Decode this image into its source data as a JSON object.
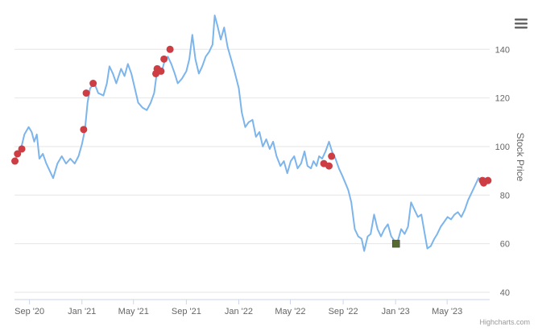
{
  "chart_data": {
    "type": "line",
    "title": "",
    "xlabel": "",
    "ylabel": "Stock Price",
    "y_axis_side": "right",
    "ylim": [
      37,
      157
    ],
    "xlim": [
      "2020-07-28",
      "2023-08-08"
    ],
    "y_ticks": [
      40,
      60,
      80,
      100,
      120,
      140
    ],
    "x_ticks": [
      {
        "date": "2020-09-01",
        "label": "Sep '20"
      },
      {
        "date": "2021-01-01",
        "label": "Jan '21"
      },
      {
        "date": "2021-05-01",
        "label": "May '21"
      },
      {
        "date": "2021-09-01",
        "label": "Sep '21"
      },
      {
        "date": "2022-01-01",
        "label": "Jan '22"
      },
      {
        "date": "2022-05-01",
        "label": "May '22"
      },
      {
        "date": "2022-09-01",
        "label": "Sep '22"
      },
      {
        "date": "2023-01-01",
        "label": "Jan '23"
      },
      {
        "date": "2023-05-01",
        "label": "May '23"
      }
    ],
    "grid": true,
    "legend": "none",
    "series": [
      {
        "type": "line",
        "color": "#7cb5ec",
        "points": [
          [
            "2020-07-28",
            94
          ],
          [
            "2020-08-05",
            97
          ],
          [
            "2020-08-12",
            99
          ],
          [
            "2020-08-20",
            105
          ],
          [
            "2020-08-30",
            108
          ],
          [
            "2020-09-06",
            106
          ],
          [
            "2020-09-12",
            102
          ],
          [
            "2020-09-18",
            105
          ],
          [
            "2020-09-24",
            95
          ],
          [
            "2020-10-02",
            97
          ],
          [
            "2020-10-10",
            93
          ],
          [
            "2020-10-18",
            90
          ],
          [
            "2020-10-26",
            87
          ],
          [
            "2020-11-05",
            93
          ],
          [
            "2020-11-15",
            96
          ],
          [
            "2020-11-25",
            93
          ],
          [
            "2020-12-05",
            95
          ],
          [
            "2020-12-15",
            93
          ],
          [
            "2020-12-24",
            96
          ],
          [
            "2021-01-01",
            101
          ],
          [
            "2021-01-08",
            107
          ],
          [
            "2021-01-14",
            118
          ],
          [
            "2021-01-20",
            124
          ],
          [
            "2021-01-30",
            126
          ],
          [
            "2021-02-08",
            122
          ],
          [
            "2021-02-20",
            121
          ],
          [
            "2021-02-28",
            126
          ],
          [
            "2021-03-06",
            133
          ],
          [
            "2021-03-14",
            130
          ],
          [
            "2021-03-22",
            126
          ],
          [
            "2021-04-02",
            132
          ],
          [
            "2021-04-10",
            129
          ],
          [
            "2021-04-18",
            134
          ],
          [
            "2021-04-26",
            130
          ],
          [
            "2021-05-04",
            124
          ],
          [
            "2021-05-12",
            118
          ],
          [
            "2021-05-22",
            116
          ],
          [
            "2021-06-01",
            115
          ],
          [
            "2021-06-10",
            118
          ],
          [
            "2021-06-18",
            122
          ],
          [
            "2021-06-24",
            130
          ],
          [
            "2021-06-30",
            133
          ],
          [
            "2021-07-06",
            131
          ],
          [
            "2021-07-12",
            135
          ],
          [
            "2021-07-20",
            137
          ],
          [
            "2021-07-28",
            134
          ],
          [
            "2021-08-05",
            130
          ],
          [
            "2021-08-12",
            126
          ],
          [
            "2021-08-22",
            128
          ],
          [
            "2021-09-01",
            131
          ],
          [
            "2021-09-08",
            136
          ],
          [
            "2021-09-15",
            146
          ],
          [
            "2021-09-22",
            136
          ],
          [
            "2021-09-30",
            130
          ],
          [
            "2021-10-08",
            133
          ],
          [
            "2021-10-16",
            137
          ],
          [
            "2021-10-24",
            139
          ],
          [
            "2021-11-01",
            142
          ],
          [
            "2021-11-06",
            154
          ],
          [
            "2021-11-12",
            150
          ],
          [
            "2021-11-20",
            144
          ],
          [
            "2021-11-28",
            149
          ],
          [
            "2021-12-06",
            141
          ],
          [
            "2021-12-14",
            136
          ],
          [
            "2021-12-22",
            131
          ],
          [
            "2022-01-01",
            124
          ],
          [
            "2022-01-08",
            114
          ],
          [
            "2022-01-16",
            108
          ],
          [
            "2022-01-24",
            110
          ],
          [
            "2022-02-02",
            111
          ],
          [
            "2022-02-10",
            104
          ],
          [
            "2022-02-18",
            106
          ],
          [
            "2022-02-26",
            100
          ],
          [
            "2022-03-06",
            103
          ],
          [
            "2022-03-14",
            99
          ],
          [
            "2022-03-22",
            102
          ],
          [
            "2022-03-30",
            96
          ],
          [
            "2022-04-08",
            92
          ],
          [
            "2022-04-16",
            94
          ],
          [
            "2022-04-24",
            89
          ],
          [
            "2022-05-02",
            94
          ],
          [
            "2022-05-10",
            96
          ],
          [
            "2022-05-18",
            91
          ],
          [
            "2022-05-26",
            93
          ],
          [
            "2022-06-03",
            98
          ],
          [
            "2022-06-10",
            92
          ],
          [
            "2022-06-18",
            91
          ],
          [
            "2022-06-24",
            94
          ],
          [
            "2022-07-01",
            92
          ],
          [
            "2022-07-07",
            96
          ],
          [
            "2022-07-14",
            95
          ],
          [
            "2022-07-22",
            98
          ],
          [
            "2022-07-30",
            102
          ],
          [
            "2022-08-06",
            98
          ],
          [
            "2022-08-14",
            95
          ],
          [
            "2022-08-22",
            91
          ],
          [
            "2022-08-30",
            88
          ],
          [
            "2022-09-06",
            85
          ],
          [
            "2022-09-13",
            82
          ],
          [
            "2022-09-20",
            77
          ],
          [
            "2022-09-28",
            66
          ],
          [
            "2022-10-06",
            63
          ],
          [
            "2022-10-14",
            62
          ],
          [
            "2022-10-20",
            57
          ],
          [
            "2022-10-28",
            63
          ],
          [
            "2022-11-04",
            64
          ],
          [
            "2022-11-12",
            72
          ],
          [
            "2022-11-20",
            66
          ],
          [
            "2022-11-28",
            63
          ],
          [
            "2022-12-06",
            66
          ],
          [
            "2022-12-14",
            68
          ],
          [
            "2022-12-22",
            63
          ],
          [
            "2022-12-30",
            61
          ],
          [
            "2023-01-06",
            61
          ],
          [
            "2023-01-14",
            66
          ],
          [
            "2023-01-22",
            64
          ],
          [
            "2023-01-30",
            67
          ],
          [
            "2023-02-06",
            77
          ],
          [
            "2023-02-14",
            74
          ],
          [
            "2023-02-22",
            71
          ],
          [
            "2023-03-02",
            72
          ],
          [
            "2023-03-10",
            64
          ],
          [
            "2023-03-16",
            58
          ],
          [
            "2023-03-24",
            59
          ],
          [
            "2023-04-01",
            62
          ],
          [
            "2023-04-08",
            64
          ],
          [
            "2023-04-16",
            67
          ],
          [
            "2023-04-24",
            69
          ],
          [
            "2023-05-02",
            71
          ],
          [
            "2023-05-10",
            70
          ],
          [
            "2023-05-18",
            72
          ],
          [
            "2023-05-26",
            73
          ],
          [
            "2023-06-03",
            71
          ],
          [
            "2023-06-11",
            74
          ],
          [
            "2023-06-19",
            78
          ],
          [
            "2023-06-27",
            81
          ],
          [
            "2023-07-05",
            84
          ],
          [
            "2023-07-13",
            87
          ],
          [
            "2023-07-20",
            86
          ],
          [
            "2023-07-27",
            87
          ],
          [
            "2023-08-04",
            86
          ]
        ]
      },
      {
        "type": "scatter",
        "color": "#cc3e44",
        "marker": "circle",
        "points": [
          [
            "2020-07-29",
            94
          ],
          [
            "2020-08-04",
            97
          ],
          [
            "2020-08-14",
            99
          ],
          [
            "2021-01-05",
            107
          ],
          [
            "2021-01-11",
            122
          ],
          [
            "2021-01-27",
            126
          ],
          [
            "2021-06-22",
            130
          ],
          [
            "2021-06-25",
            132
          ],
          [
            "2021-07-04",
            131
          ],
          [
            "2021-07-11",
            136
          ],
          [
            "2021-07-25",
            140
          ],
          [
            "2022-07-18",
            93
          ],
          [
            "2022-07-30",
            92
          ],
          [
            "2022-08-05",
            96
          ],
          [
            "2023-07-22",
            86
          ],
          [
            "2023-07-25",
            85
          ],
          [
            "2023-08-04",
            86
          ]
        ]
      },
      {
        "type": "scatter",
        "color": "#556b2f",
        "marker": "square",
        "points": [
          [
            "2023-01-02",
            60
          ]
        ]
      }
    ]
  },
  "credits": "Highcharts.com",
  "menu": {
    "icon": "menu-icon"
  }
}
